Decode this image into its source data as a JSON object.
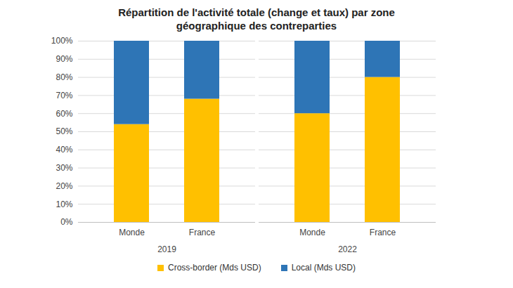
{
  "chart_data": {
    "type": "bar",
    "title": "Répartition de l'activité totale (change et taux) par zone géographique des contreparties",
    "categories": [
      "Monde",
      "France",
      "Monde",
      "France"
    ],
    "groups": [
      "2019",
      "2019",
      "2022",
      "2022"
    ],
    "series": [
      {
        "name": "Cross-border (Mds USD)",
        "color": "#FFC000",
        "values": [
          54,
          68,
          60,
          80
        ]
      },
      {
        "name": "Local (Mds USD)",
        "color": "#2E75B6",
        "values": [
          46,
          32,
          40,
          20
        ]
      }
    ],
    "ylim": [
      0,
      100
    ],
    "yticks": [
      {
        "value": 0,
        "label": "0%"
      },
      {
        "value": 10,
        "label": "10%"
      },
      {
        "value": 20,
        "label": "20%"
      },
      {
        "value": 30,
        "label": "30%"
      },
      {
        "value": 40,
        "label": "40%"
      },
      {
        "value": 50,
        "label": "50%"
      },
      {
        "value": 60,
        "label": "60%"
      },
      {
        "value": 70,
        "label": "70%"
      },
      {
        "value": 80,
        "label": "80%"
      },
      {
        "value": 90,
        "label": "90%"
      },
      {
        "value": 100,
        "label": "100%"
      }
    ],
    "stacked": true,
    "grid": true,
    "legend": "bottom"
  }
}
